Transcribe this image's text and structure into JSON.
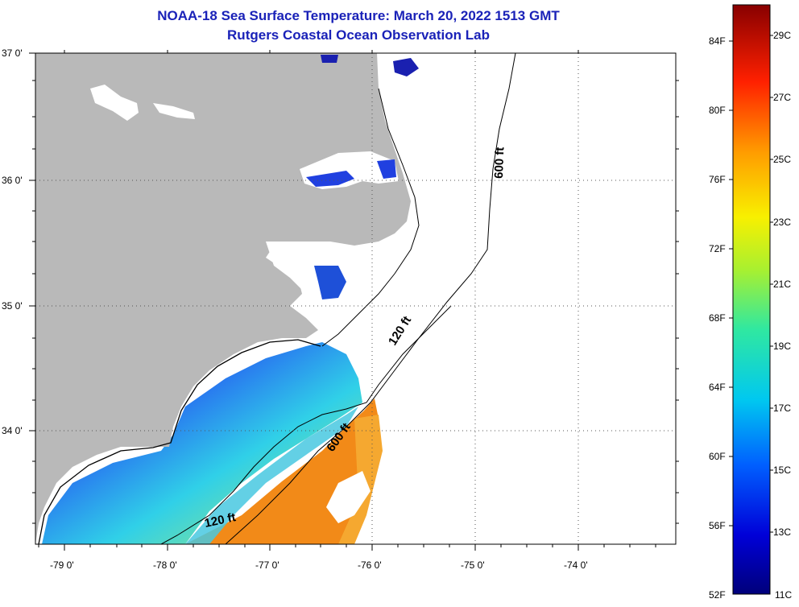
{
  "title": "NOAA-18 Sea Surface Temperature:  March 20, 2022 1513 GMT",
  "subtitle": "Rutgers Coastal Ocean Observation Lab",
  "lat_labels": [
    "37 0'",
    "36 0'",
    "35 0'",
    "34 0'"
  ],
  "lon_labels": [
    "-79 0'",
    "-78 0'",
    "-77 0'",
    "-76 0'",
    "-75 0'",
    "-74 0'"
  ],
  "contour_labels": {
    "c600_north": "600 ft",
    "c120_mid": "120 ft",
    "c600_south": "600 ft",
    "c120_south": "120 ft"
  },
  "colorbar": {
    "fahrenheit_labels": [
      "84F",
      "80F",
      "76F",
      "72F",
      "68F",
      "64F",
      "60F",
      "56F",
      "52F"
    ],
    "celsius_labels": [
      "29C",
      "27C",
      "25C",
      "23C",
      "21C",
      "19C",
      "17C",
      "15C",
      "13C",
      "11C"
    ],
    "range_c": [
      11,
      30
    ]
  },
  "colors": {
    "land": "#b9b9b9",
    "title": "#1a22b8",
    "warm": "#f28a18",
    "cold": "#1f3fd6"
  }
}
